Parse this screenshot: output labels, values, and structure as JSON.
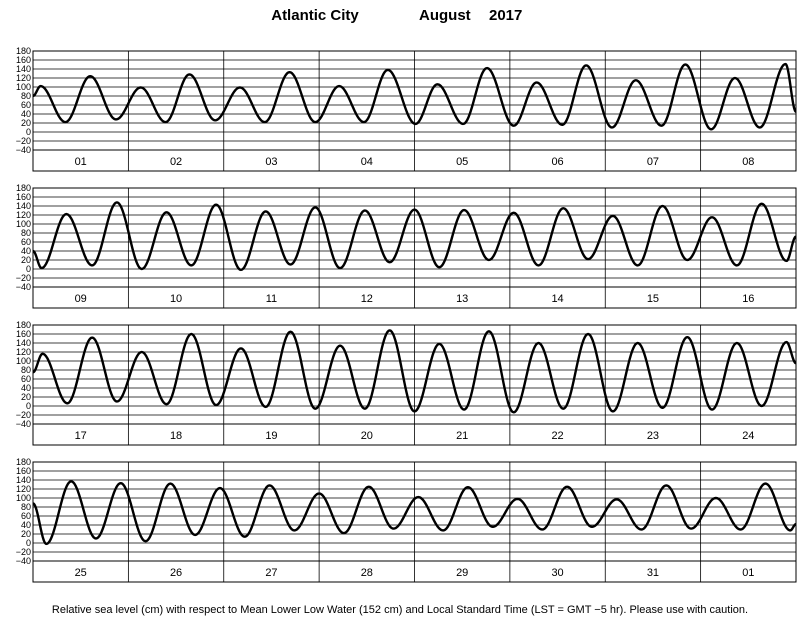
{
  "title": {
    "location": "Atlantic City",
    "month": "August",
    "year": "2017"
  },
  "footnote": "Relative sea level (cm) with respect to Mean Lower Low Water (152 cm) and Local Standard Time (LST = GMT −5 hr). Please use with caution.",
  "chart_data": [
    {
      "type": "line",
      "panel": 1,
      "y_unit": "cm",
      "ylim": [
        -40,
        180
      ],
      "yticks": [
        -40,
        -20,
        0,
        20,
        40,
        60,
        80,
        100,
        120,
        140,
        160,
        180
      ],
      "grid": true,
      "day_labels": [
        "01",
        "02",
        "03",
        "04",
        "05",
        "06",
        "07",
        "08"
      ],
      "extrema": [
        {
          "day": 0.0,
          "value": 80
        },
        {
          "day": 0.08,
          "value": 102
        },
        {
          "day": 0.34,
          "value": 22
        },
        {
          "day": 0.6,
          "value": 124
        },
        {
          "day": 0.87,
          "value": 28
        },
        {
          "day": 1.13,
          "value": 99
        },
        {
          "day": 1.39,
          "value": 22
        },
        {
          "day": 1.64,
          "value": 128
        },
        {
          "day": 1.91,
          "value": 26
        },
        {
          "day": 2.17,
          "value": 99
        },
        {
          "day": 2.43,
          "value": 22
        },
        {
          "day": 2.69,
          "value": 133
        },
        {
          "day": 2.96,
          "value": 22
        },
        {
          "day": 3.21,
          "value": 102
        },
        {
          "day": 3.47,
          "value": 22
        },
        {
          "day": 3.72,
          "value": 138
        },
        {
          "day": 4.01,
          "value": 18
        },
        {
          "day": 4.24,
          "value": 106
        },
        {
          "day": 4.51,
          "value": 18
        },
        {
          "day": 4.76,
          "value": 142
        },
        {
          "day": 5.04,
          "value": 14
        },
        {
          "day": 5.28,
          "value": 110
        },
        {
          "day": 5.55,
          "value": 16
        },
        {
          "day": 5.8,
          "value": 148
        },
        {
          "day": 6.07,
          "value": 10
        },
        {
          "day": 6.32,
          "value": 115
        },
        {
          "day": 6.59,
          "value": 14
        },
        {
          "day": 6.84,
          "value": 150
        },
        {
          "day": 7.11,
          "value": 6
        },
        {
          "day": 7.36,
          "value": 120
        },
        {
          "day": 7.62,
          "value": 10
        },
        {
          "day": 7.89,
          "value": 151
        },
        {
          "day": 8.0,
          "value": 45
        }
      ]
    },
    {
      "type": "line",
      "panel": 2,
      "y_unit": "cm",
      "ylim": [
        -40,
        180
      ],
      "yticks": [
        -40,
        -20,
        0,
        20,
        40,
        60,
        80,
        100,
        120,
        140,
        160,
        180
      ],
      "grid": true,
      "day_labels": [
        "09",
        "10",
        "11",
        "12",
        "13",
        "14",
        "15",
        "16"
      ],
      "extrema": [
        {
          "day": 0.0,
          "value": 40
        },
        {
          "day": 0.09,
          "value": 2
        },
        {
          "day": 0.35,
          "value": 122
        },
        {
          "day": 0.62,
          "value": 8
        },
        {
          "day": 0.88,
          "value": 148
        },
        {
          "day": 1.14,
          "value": 0
        },
        {
          "day": 1.4,
          "value": 126
        },
        {
          "day": 1.66,
          "value": 8
        },
        {
          "day": 1.92,
          "value": 143
        },
        {
          "day": 2.18,
          "value": -2
        },
        {
          "day": 2.44,
          "value": 128
        },
        {
          "day": 2.7,
          "value": 10
        },
        {
          "day": 2.96,
          "value": 137
        },
        {
          "day": 3.22,
          "value": 2
        },
        {
          "day": 3.48,
          "value": 130
        },
        {
          "day": 3.74,
          "value": 15
        },
        {
          "day": 4.0,
          "value": 132
        },
        {
          "day": 4.26,
          "value": 4
        },
        {
          "day": 4.52,
          "value": 131
        },
        {
          "day": 4.78,
          "value": 20
        },
        {
          "day": 5.04,
          "value": 125
        },
        {
          "day": 5.3,
          "value": 8
        },
        {
          "day": 5.56,
          "value": 135
        },
        {
          "day": 5.82,
          "value": 22
        },
        {
          "day": 6.08,
          "value": 118
        },
        {
          "day": 6.34,
          "value": 8
        },
        {
          "day": 6.6,
          "value": 140
        },
        {
          "day": 6.86,
          "value": 20
        },
        {
          "day": 7.12,
          "value": 115
        },
        {
          "day": 7.38,
          "value": 8
        },
        {
          "day": 7.64,
          "value": 145
        },
        {
          "day": 7.9,
          "value": 18
        },
        {
          "day": 8.0,
          "value": 72
        }
      ]
    },
    {
      "type": "line",
      "panel": 3,
      "y_unit": "cm",
      "ylim": [
        -40,
        180
      ],
      "yticks": [
        -40,
        -20,
        0,
        20,
        40,
        60,
        80,
        100,
        120,
        140,
        160,
        180
      ],
      "grid": true,
      "day_labels": [
        "17",
        "18",
        "19",
        "20",
        "21",
        "22",
        "23",
        "24"
      ],
      "extrema": [
        {
          "day": 0.0,
          "value": 75
        },
        {
          "day": 0.1,
          "value": 116
        },
        {
          "day": 0.36,
          "value": 6
        },
        {
          "day": 0.62,
          "value": 152
        },
        {
          "day": 0.88,
          "value": 10
        },
        {
          "day": 1.14,
          "value": 120
        },
        {
          "day": 1.4,
          "value": 4
        },
        {
          "day": 1.66,
          "value": 160
        },
        {
          "day": 1.92,
          "value": 2
        },
        {
          "day": 2.18,
          "value": 128
        },
        {
          "day": 2.44,
          "value": -2
        },
        {
          "day": 2.7,
          "value": 165
        },
        {
          "day": 2.96,
          "value": -6
        },
        {
          "day": 3.22,
          "value": 134
        },
        {
          "day": 3.48,
          "value": -6
        },
        {
          "day": 3.74,
          "value": 168
        },
        {
          "day": 4.0,
          "value": -12
        },
        {
          "day": 4.26,
          "value": 138
        },
        {
          "day": 4.52,
          "value": -8
        },
        {
          "day": 4.78,
          "value": 166
        },
        {
          "day": 5.04,
          "value": -14
        },
        {
          "day": 5.3,
          "value": 140
        },
        {
          "day": 5.56,
          "value": -6
        },
        {
          "day": 5.82,
          "value": 160
        },
        {
          "day": 6.08,
          "value": -12
        },
        {
          "day": 6.34,
          "value": 140
        },
        {
          "day": 6.6,
          "value": -4
        },
        {
          "day": 6.86,
          "value": 153
        },
        {
          "day": 7.12,
          "value": -8
        },
        {
          "day": 7.38,
          "value": 140
        },
        {
          "day": 7.64,
          "value": 0
        },
        {
          "day": 7.9,
          "value": 142
        },
        {
          "day": 8.0,
          "value": 95
        }
      ]
    },
    {
      "type": "line",
      "panel": 4,
      "y_unit": "cm",
      "ylim": [
        -40,
        180
      ],
      "yticks": [
        -40,
        -20,
        0,
        20,
        40,
        60,
        80,
        100,
        120,
        140,
        160,
        180
      ],
      "grid": true,
      "day_labels": [
        "25",
        "26",
        "27",
        "28",
        "29",
        "30",
        "31",
        "01"
      ],
      "extrema": [
        {
          "day": 0.0,
          "value": 88
        },
        {
          "day": 0.14,
          "value": -2
        },
        {
          "day": 0.4,
          "value": 137
        },
        {
          "day": 0.66,
          "value": 10
        },
        {
          "day": 0.92,
          "value": 133
        },
        {
          "day": 1.18,
          "value": 4
        },
        {
          "day": 1.44,
          "value": 132
        },
        {
          "day": 1.7,
          "value": 18
        },
        {
          "day": 1.96,
          "value": 122
        },
        {
          "day": 2.22,
          "value": 14
        },
        {
          "day": 2.48,
          "value": 128
        },
        {
          "day": 2.74,
          "value": 28
        },
        {
          "day": 3.0,
          "value": 110
        },
        {
          "day": 3.26,
          "value": 22
        },
        {
          "day": 3.52,
          "value": 125
        },
        {
          "day": 3.78,
          "value": 32
        },
        {
          "day": 4.04,
          "value": 102
        },
        {
          "day": 4.3,
          "value": 28
        },
        {
          "day": 4.56,
          "value": 124
        },
        {
          "day": 4.82,
          "value": 36
        },
        {
          "day": 5.08,
          "value": 98
        },
        {
          "day": 5.34,
          "value": 30
        },
        {
          "day": 5.6,
          "value": 125
        },
        {
          "day": 5.86,
          "value": 36
        },
        {
          "day": 6.12,
          "value": 97
        },
        {
          "day": 6.38,
          "value": 30
        },
        {
          "day": 6.64,
          "value": 128
        },
        {
          "day": 6.9,
          "value": 32
        },
        {
          "day": 7.16,
          "value": 100
        },
        {
          "day": 7.42,
          "value": 30
        },
        {
          "day": 7.68,
          "value": 132
        },
        {
          "day": 7.94,
          "value": 28
        },
        {
          "day": 8.0,
          "value": 42
        }
      ]
    }
  ]
}
